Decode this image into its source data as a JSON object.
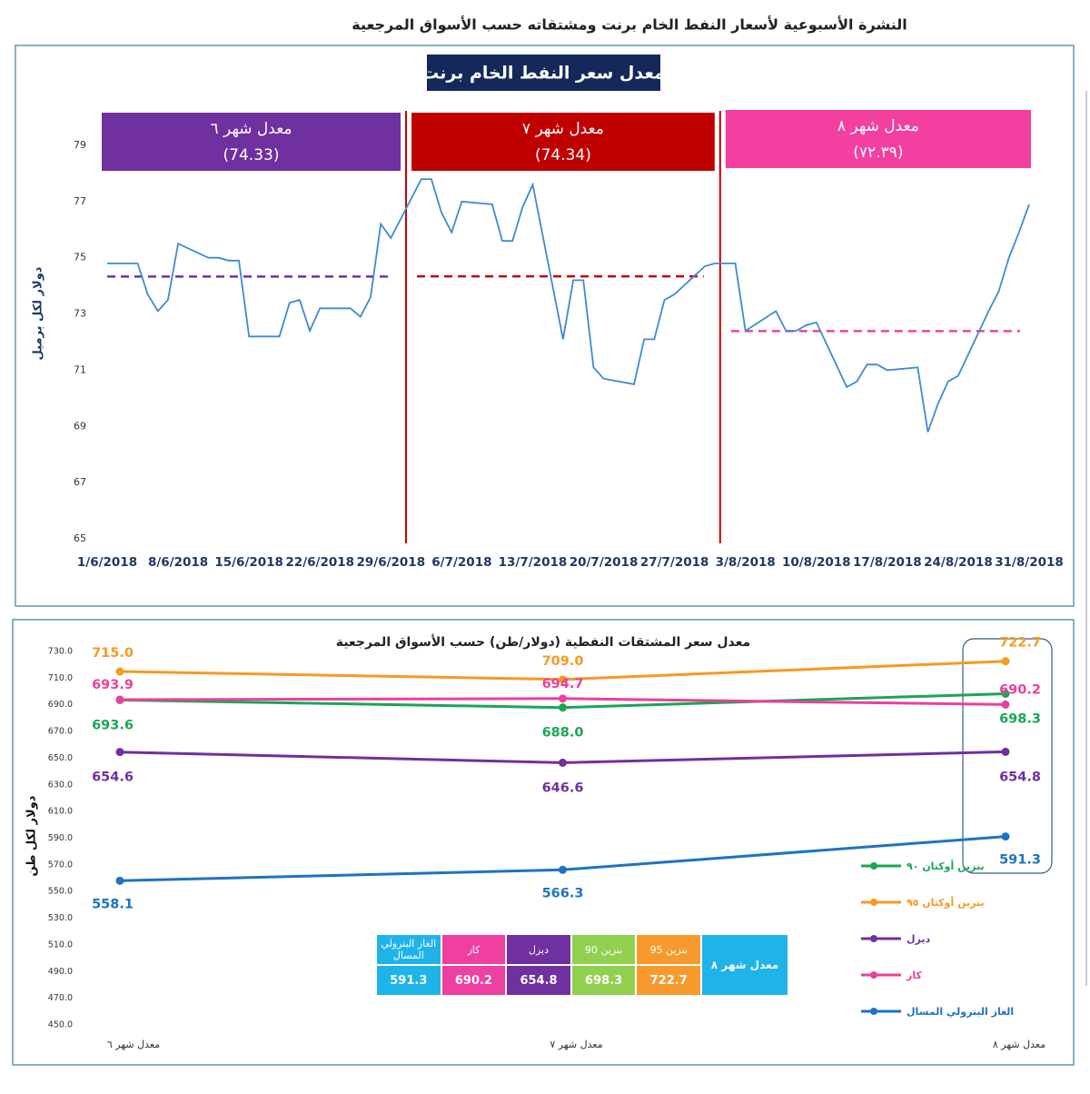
{
  "header": {
    "title": "النشرة الأسبوعية  لأسعار النفط الخام برنت ومشتقاته حسب الأسواق المرجعية"
  },
  "chart_data": [
    {
      "type": "line",
      "title": "معدل سعر النفط الخام برنت",
      "y_label": "دولار لكل برميل",
      "color": "#3d8ad6",
      "x": [
        "1/6/2018",
        "4/6/2018",
        "5/6/2018",
        "6/6/2018",
        "7/6/2018",
        "8/6/2018",
        "11/6/2018",
        "12/6/2018",
        "13/6/2018",
        "14/6/2018",
        "15/6/2018",
        "18/6/2018",
        "19/6/2018",
        "20/6/2018",
        "21/6/2018",
        "22/6/2018",
        "25/6/2018",
        "26/6/2018",
        "27/6/2018",
        "28/6/2018",
        "29/6/2018",
        "2/7/2018",
        "3/7/2018",
        "4/7/2018",
        "5/7/2018",
        "6/7/2018",
        "9/7/2018",
        "10/7/2018",
        "11/7/2018",
        "12/7/2018",
        "13/7/2018",
        "16/7/2018",
        "17/7/2018",
        "18/7/2018",
        "19/7/2018",
        "20/7/2018",
        "23/7/2018",
        "24/7/2018",
        "25/7/2018",
        "26/7/2018",
        "27/7/2018",
        "30/7/2018",
        "31/7/2018",
        "1/8/2018",
        "2/8/2018",
        "3/8/2018",
        "6/8/2018",
        "7/8/2018",
        "8/8/2018",
        "9/8/2018",
        "10/8/2018",
        "13/8/2018",
        "14/8/2018",
        "15/8/2018",
        "16/8/2018",
        "17/8/2018",
        "20/8/2018",
        "21/8/2018",
        "22/8/2018",
        "23/8/2018",
        "24/8/2018",
        "27/8/2018",
        "28/8/2018",
        "29/8/2018",
        "30/8/2018",
        "31/8/2018"
      ],
      "values": [
        74.8,
        74.8,
        73.7,
        73.1,
        73.5,
        75.5,
        75.0,
        75.0,
        74.9,
        74.9,
        72.2,
        72.2,
        73.4,
        73.5,
        72.4,
        73.2,
        73.2,
        72.9,
        73.6,
        76.2,
        75.7,
        77.8,
        77.8,
        76.6,
        75.9,
        77.0,
        76.9,
        75.6,
        75.6,
        76.8,
        77.6,
        72.1,
        74.2,
        74.2,
        71.1,
        70.7,
        70.5,
        72.1,
        72.1,
        73.5,
        73.7,
        74.7,
        74.8,
        74.8,
        74.8,
        72.4,
        73.1,
        72.4,
        72.4,
        72.6,
        72.7,
        70.4,
        70.6,
        71.2,
        71.2,
        71.0,
        71.1,
        68.8,
        69.8,
        70.6,
        70.8,
        73.1,
        73.8,
        75.0,
        75.9,
        76.9
      ],
      "xlim": [
        "1/6/2018",
        "31/8/2018"
      ],
      "xticks": [
        "1/6/2018",
        "8/6/2018",
        "15/6/2018",
        "22/6/2018",
        "29/6/2018",
        "6/7/2018",
        "13/7/2018",
        "20/7/2018",
        "27/7/2018",
        "3/8/2018",
        "10/8/2018",
        "17/8/2018",
        "24/8/2018",
        "31/8/2018"
      ],
      "ylim": [
        65,
        80
      ],
      "yticks": [
        65,
        67,
        69,
        71,
        73,
        75,
        77,
        79
      ],
      "averages": [
        {
          "label": "معدل شهر ٦",
          "value": 74.33,
          "value_label": "(74.33)",
          "color": "#7030a0"
        },
        {
          "label": "معدل شهر ٧",
          "value": 74.34,
          "value_label": "(74.34)",
          "color": "#c00000"
        },
        {
          "label": "معدل شهر ٨",
          "value": 72.39,
          "value_label": "(٧٢.٣٩)",
          "color": "#f23fa0"
        }
      ]
    },
    {
      "type": "line",
      "title": "معدل سعر المشتقات النفطية (دولار/طن) حسب الأسواق المرجعية",
      "y_label": "دولار لكل طن",
      "categories": [
        "معدل شهر ٦",
        "معدل شهر ٧",
        "معدل شهر ٨"
      ],
      "ylim": [
        450,
        730
      ],
      "yticks": [
        {
          "value": 450,
          "label": "450.0"
        },
        {
          "value": 470,
          "label": "470.0"
        },
        {
          "value": 490,
          "label": "490.0"
        },
        {
          "value": 510,
          "label": "510.0"
        },
        {
          "value": 530,
          "label": "530.0"
        },
        {
          "value": 550,
          "label": "550.0"
        },
        {
          "value": 570,
          "label": "570.0"
        },
        {
          "value": 590,
          "label": "590.0"
        },
        {
          "value": 610,
          "label": "610.0"
        },
        {
          "value": 630,
          "label": "630.0"
        },
        {
          "value": 650,
          "label": "650.0"
        },
        {
          "value": 670,
          "label": "670.0"
        },
        {
          "value": 690,
          "label": "690.0"
        },
        {
          "value": 710,
          "label": "710.0"
        },
        {
          "value": 730,
          "label": "730.0"
        }
      ],
      "series": [
        {
          "name": "بنزين أوكتان ٩٠",
          "color": "#1aa656",
          "values": [
            693.6,
            688.0,
            698.3
          ],
          "value_labels": [
            "693.6",
            "688.0",
            "698.3"
          ]
        },
        {
          "name": "بنزين أوكتان ٩٥",
          "color": "#f59a23",
          "values": [
            715.0,
            709.0,
            722.7
          ],
          "value_labels": [
            "715.0",
            "709.0",
            "722.7"
          ]
        },
        {
          "name": "ديزل",
          "color": "#7030a0",
          "values": [
            654.6,
            646.6,
            654.8
          ],
          "value_labels": [
            "654.6",
            "646.6",
            "654.8"
          ]
        },
        {
          "name": "كاز",
          "color": "#ec3f9c",
          "values": [
            693.9,
            694.7,
            690.2
          ],
          "value_labels": [
            "693.9",
            "694.7",
            "690.2"
          ]
        },
        {
          "name": "الغاز البترولي المسال",
          "color": "#1f73c0",
          "values": [
            558.1,
            566.3,
            591.3
          ],
          "value_labels": [
            "558.1",
            "566.3",
            "591.3"
          ]
        }
      ],
      "table": {
        "title": "معدل شهر ٨",
        "columns": [
          "بنزين 95",
          "بنزين 90",
          "ديزل",
          "كاز",
          "الغاز البترولي المسال"
        ],
        "colors": [
          "#f79a2e",
          "#92d050",
          "#7030a0",
          "#ef3fa0",
          "#1eb4ea"
        ],
        "values": [
          722.7,
          698.3,
          654.8,
          690.2,
          591.3
        ]
      }
    }
  ]
}
